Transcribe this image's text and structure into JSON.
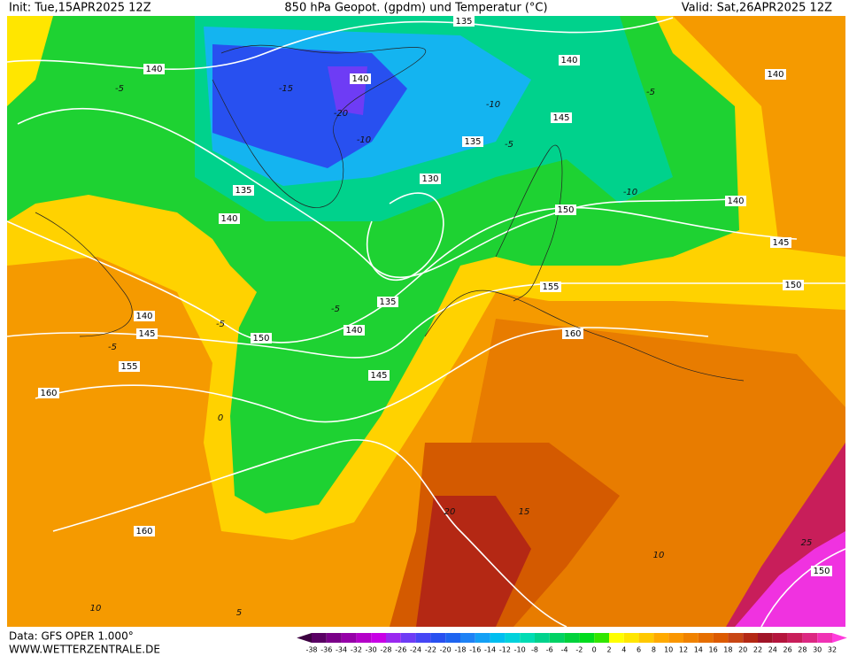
{
  "header": {
    "init": "Init: Tue,15APR2025 12Z",
    "title": "850 hPa Geopot. (gpdm) und Temperatur (°C)",
    "valid": "Valid: Sat,26APR2025 12Z"
  },
  "footer": {
    "source": "Data: GFS OPER 1.000°",
    "site": "WWW.WETTERZENTRALE.DE"
  },
  "legend": {
    "labels": [
      -38,
      -36,
      -34,
      -32,
      -30,
      -28,
      -26,
      -24,
      -22,
      -20,
      -18,
      -16,
      -14,
      -12,
      -10,
      -8,
      -6,
      -4,
      -2,
      0,
      2,
      4,
      6,
      8,
      10,
      12,
      14,
      16,
      18,
      20,
      22,
      24,
      26,
      28,
      30,
      32
    ],
    "colors": [
      "#3c0040",
      "#5a0064",
      "#7a0088",
      "#9600a8",
      "#b400c8",
      "#c800e6",
      "#9a28f0",
      "#6e3cf5",
      "#4646f5",
      "#2850f0",
      "#1e64f0",
      "#1e82f5",
      "#14a0f5",
      "#00bef0",
      "#00d2dc",
      "#00dcb4",
      "#00d28c",
      "#00d264",
      "#00d23c",
      "#00dc1e",
      "#32e600",
      "#ffff00",
      "#ffe600",
      "#ffc800",
      "#ffaa00",
      "#fa9600",
      "#f08200",
      "#e66e00",
      "#dc5a00",
      "#c84614",
      "#b42814",
      "#a01428",
      "#b4143c",
      "#c81e5a",
      "#dc2882",
      "#f032b4",
      "#ff3cdc"
    ]
  },
  "contour_labels": {
    "geopotential": [
      135,
      140,
      140,
      140,
      140,
      145,
      135,
      130,
      135,
      140,
      150,
      140,
      145,
      150,
      155,
      135,
      140,
      145,
      150,
      140,
      160,
      155,
      145,
      160,
      160,
      150
    ],
    "temperature": [
      -5,
      -15,
      -20,
      -10,
      -10,
      -5,
      -5,
      -10,
      -5,
      -5,
      -5,
      0,
      20,
      15,
      10,
      25,
      10,
      5
    ]
  }
}
